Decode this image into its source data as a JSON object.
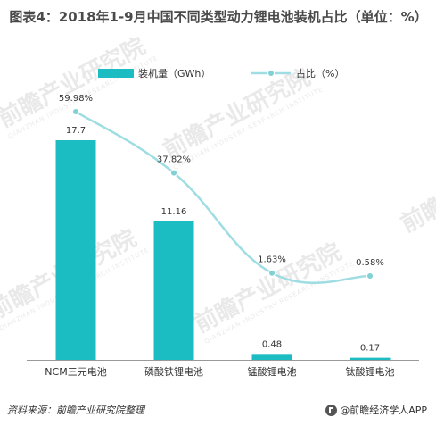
{
  "title": "图表4：2018年1-9月中国不同类型动力锂电池装机占比（单位：%）",
  "watermark": {
    "text": "前瞻产业研究院",
    "sub": "QIANZHAN INDUSTRY RESEARCH INSTITUTE"
  },
  "footer": {
    "source": "资料来源：前瞻产业研究院整理",
    "brand": "@前瞻经济学人APP"
  },
  "colors": {
    "bar": "#1bbcc2",
    "line": "#9fdde3",
    "marker": "#7fd1d6",
    "axis": "#999999",
    "text": "#333333"
  },
  "chart_data": {
    "type": "bar",
    "categories": [
      "NCM三元电池",
      "磷酸铁锂电池",
      "锰酸锂电池",
      "钛酸锂电池"
    ],
    "series": [
      {
        "name": "装机量（GWh）",
        "type": "bar",
        "values": [
          17.7,
          11.16,
          0.48,
          0.17
        ],
        "labels": [
          "17.7",
          "11.16",
          "0.48",
          "0.17"
        ]
      },
      {
        "name": "占比（%）",
        "type": "line",
        "smooth": true,
        "values": [
          59.98,
          37.82,
          1.63,
          0.58
        ],
        "labels": [
          "59.98%",
          "37.82%",
          "1.63%",
          "0.58%"
        ]
      }
    ],
    "legend_position": "top",
    "grid": false
  }
}
